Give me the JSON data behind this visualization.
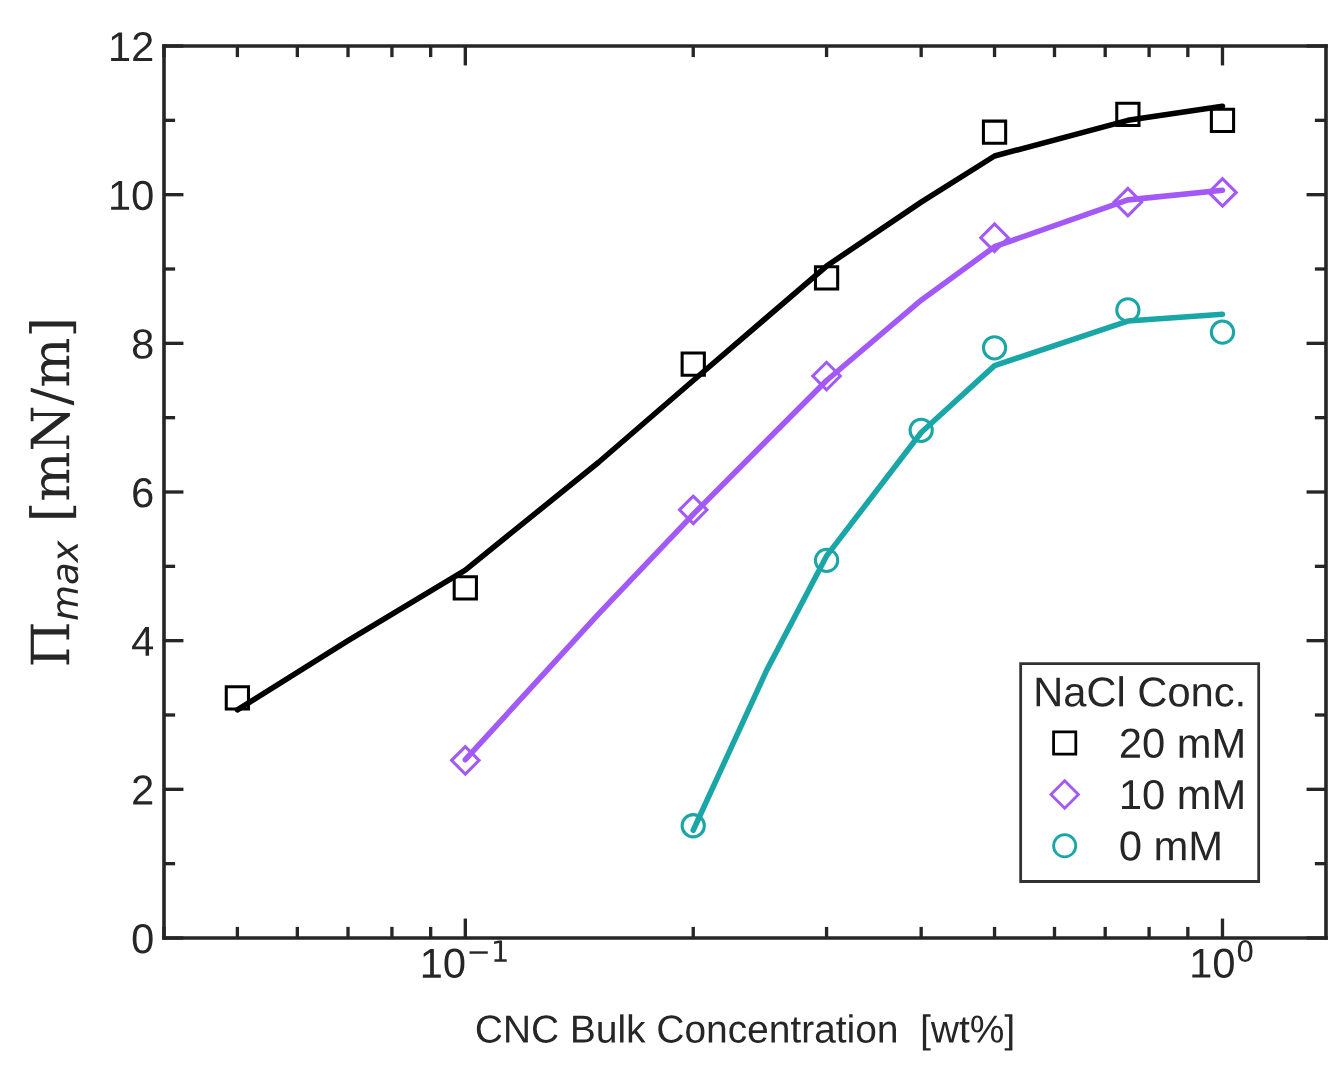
{
  "chart_data": {
    "type": "scatter",
    "xlabel": "CNC Bulk Concentration  [wt%]",
    "ylabel": "Π$_{max}$ [mN/m]",
    "legend_title": "NaCl Conc.",
    "legend": "bottom right",
    "log": "x",
    "grid": false,
    "xlim": [
      0.04,
      1.37
    ],
    "xticks": [
      {
        "value": 0.1,
        "label": "10$^{−1}$"
      },
      {
        "value": 1,
        "label": "10$^{0}$"
      }
    ],
    "ylim": [
      0,
      12
    ],
    "yticks": [
      0,
      2,
      4,
      6,
      8,
      10,
      12
    ],
    "series": [
      {
        "name": "20 mM",
        "marker": "square",
        "color": "#000000",
        "x": [
          0.05,
          0.1,
          0.2,
          0.3,
          0.5,
          0.75,
          1.0
        ],
        "values": [
          3.23,
          4.71,
          7.72,
          8.88,
          10.84,
          11.08,
          11.0
        ]
      },
      {
        "name": "10 mM",
        "marker": "diamond",
        "color": "#a259f7",
        "x": [
          0.1,
          0.2,
          0.3,
          0.5,
          0.75,
          1.0
        ],
        "values": [
          2.39,
          5.76,
          7.56,
          9.42,
          9.9,
          10.03
        ]
      },
      {
        "name": "0 mM",
        "marker": "circle",
        "color": "#1aa6a6",
        "x": [
          0.2,
          0.3,
          0.4,
          0.5,
          0.75,
          1.0
        ],
        "values": [
          1.51,
          5.08,
          6.83,
          7.94,
          8.45,
          8.15
        ]
      },
      {
        "type": "line",
        "marker": "none",
        "line_style": "solid",
        "color": "#000000",
        "x": [
          0.05,
          0.07,
          0.1,
          0.15,
          0.2,
          0.3,
          0.4,
          0.5,
          0.75,
          1.0
        ],
        "values": [
          3.07,
          4.0,
          4.95,
          6.4,
          7.5,
          9.04,
          9.9,
          10.52,
          11.0,
          11.19
        ]
      },
      {
        "type": "line",
        "marker": "none",
        "line_style": "solid",
        "color": "#a259f7",
        "x": [
          0.1,
          0.15,
          0.2,
          0.3,
          0.4,
          0.5,
          0.75,
          1.0
        ],
        "values": [
          2.4,
          4.36,
          5.7,
          7.5,
          8.58,
          9.3,
          9.93,
          10.06
        ]
      },
      {
        "type": "line",
        "marker": "none",
        "line_style": "solid",
        "color": "#1aa6a6",
        "x": [
          0.2,
          0.25,
          0.3,
          0.4,
          0.5,
          0.75,
          1.0
        ],
        "values": [
          1.45,
          3.6,
          5.14,
          6.8,
          7.7,
          8.3,
          8.39
        ]
      }
    ]
  }
}
